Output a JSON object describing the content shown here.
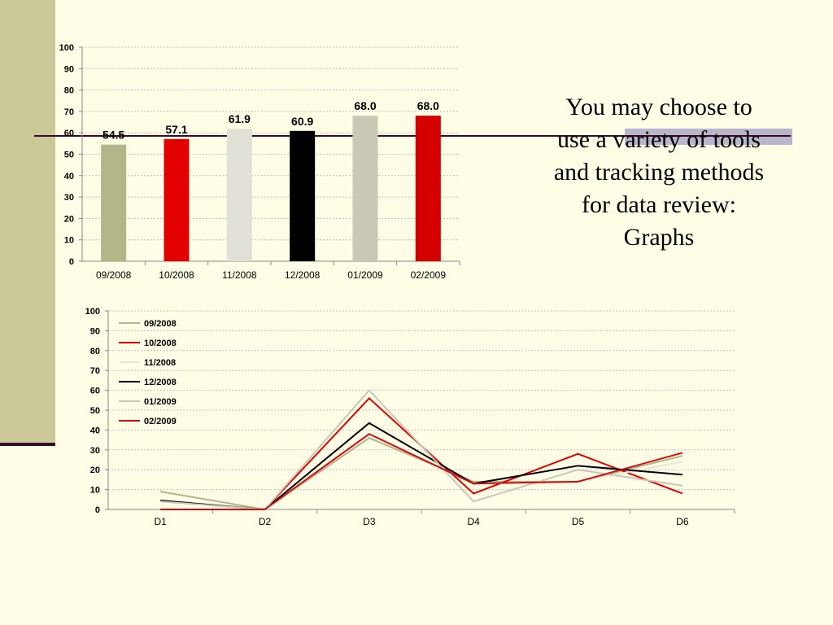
{
  "slide": {
    "text_lines": [
      "You may choose to",
      "use a variety of tools",
      "and tracking methods",
      "for data review:",
      "Graphs"
    ]
  },
  "chart_data": [
    {
      "type": "bar",
      "categories": [
        "09/2008",
        "10/2008",
        "11/2008",
        "12/2008",
        "01/2009",
        "02/2009"
      ],
      "values": [
        54.5,
        57.1,
        61.9,
        60.9,
        68.0,
        68.0
      ],
      "value_labels": [
        "54.5",
        "57.1",
        "61.9",
        "60.9",
        "68.0",
        "68.0"
      ],
      "colors": [
        "#b5b58a",
        "#e20000",
        "#e0e0d6",
        "#000000",
        "#c8c8b4",
        "#d40000"
      ],
      "yticks": [
        0,
        10,
        20,
        30,
        40,
        50,
        60,
        70,
        80,
        90,
        100
      ],
      "ylim": [
        0,
        100
      ],
      "grid": true,
      "title": "",
      "xlabel": "",
      "ylabel": ""
    },
    {
      "type": "line",
      "categories": [
        "D1",
        "D2",
        "D3",
        "D4",
        "D5",
        "D6"
      ],
      "series": [
        {
          "name": "09/2008",
          "color": "#b5b58a",
          "values": [
            9,
            0,
            36,
            14,
            14,
            27
          ]
        },
        {
          "name": "10/2008",
          "color": "#e00000",
          "values": [
            0,
            0,
            56,
            8,
            28,
            8
          ]
        },
        {
          "name": "11/2008",
          "color": "#e6e6dc",
          "values": [
            4,
            0,
            38,
            13,
            14,
            24
          ]
        },
        {
          "name": "12/2008",
          "color": "#000000",
          "values": [
            4.5,
            0,
            43.5,
            13,
            22,
            17.5
          ]
        },
        {
          "name": "01/2009",
          "color": "#c8c8b8",
          "values": [
            4,
            0,
            60,
            4,
            20,
            12
          ]
        },
        {
          "name": "02/2009",
          "color": "#cc1010",
          "values": [
            0,
            0,
            38,
            13,
            14,
            28.5
          ]
        }
      ],
      "yticks": [
        0,
        10,
        20,
        30,
        40,
        50,
        60,
        70,
        80,
        90,
        100
      ],
      "ylim": [
        0,
        100
      ],
      "grid": true,
      "legend_position": "top-left",
      "title": "",
      "xlabel": "",
      "ylabel": ""
    }
  ]
}
